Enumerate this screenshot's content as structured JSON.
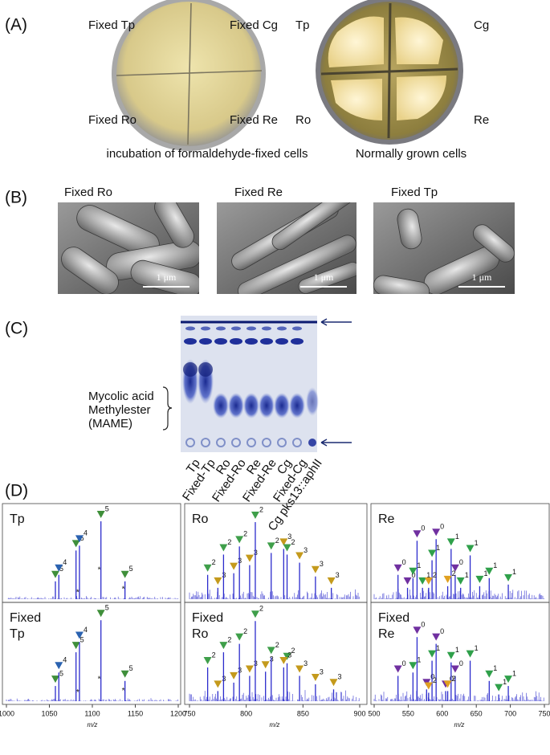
{
  "panel_a": {
    "label": "(A)",
    "fixed_plate": {
      "labels": [
        "Fixed Tp",
        "Fixed Cg",
        "Fixed Ro",
        "Fixed Re"
      ],
      "caption": "incubation of formaldehyde-fixed cells"
    },
    "normal_plate": {
      "labels": [
        "Tp",
        "Cg",
        "Ro",
        "Re"
      ],
      "caption": "Normally grown cells"
    }
  },
  "panel_b": {
    "label": "(B)",
    "images": [
      {
        "title": "Fixed Ro",
        "scale": "1 μm"
      },
      {
        "title": "Fixed Re",
        "scale": "1 μm"
      },
      {
        "title": "Fixed Tp",
        "scale": "1 μm"
      }
    ]
  },
  "panel_c": {
    "label": "(C)",
    "bracket_text": [
      "Mycolic acid",
      "Methylester",
      "(MAME)"
    ],
    "lanes": [
      "Tp",
      "Fixed-Tp",
      "Ro",
      "Fixed-Ro",
      "Re",
      "Fixed-Re",
      "Cg",
      "Fixed-Cg",
      "Cg pks13::aphII"
    ]
  },
  "panel_d": {
    "label": "(D)",
    "x_label": "m/z",
    "columns": [
      {
        "xlim": [
          1000,
          1200
        ],
        "xticks": [
          1000,
          1050,
          1100,
          1150,
          1200
        ],
        "rows": [
          {
            "title": [
              "Tp"
            ],
            "peaks": [
              {
                "mz": 1057,
                "intensity": 22,
                "label": "5",
                "color": "#3f8f3a"
              },
              {
                "mz": 1061,
                "intensity": 30,
                "label": "4",
                "color": "#2a62b0"
              },
              {
                "mz": 1081,
                "intensity": 60,
                "label": "5",
                "color": "#3f8f3a"
              },
              {
                "mz": 1085,
                "intensity": 66,
                "label": "4",
                "color": "#2a62b0"
              },
              {
                "mz": 1110,
                "intensity": 96,
                "label": "5",
                "color": "#3f8f3a"
              },
              {
                "mz": 1138,
                "intensity": 22,
                "label": "5",
                "color": "#3f8f3a"
              },
              {
                "mz": 1083,
                "intensity": 8,
                "label": "*"
              },
              {
                "mz": 1108,
                "intensity": 36,
                "label": "*"
              },
              {
                "mz": 1136,
                "intensity": 12,
                "label": "*"
              }
            ]
          },
          {
            "title": [
              "Fixed",
              "Tp"
            ],
            "peaks": [
              {
                "mz": 1057,
                "intensity": 18,
                "label": "5",
                "color": "#3f8f3a"
              },
              {
                "mz": 1061,
                "intensity": 34,
                "label": "4",
                "color": "#2a62b0"
              },
              {
                "mz": 1081,
                "intensity": 58,
                "label": "5",
                "color": "#3f8f3a"
              },
              {
                "mz": 1085,
                "intensity": 70,
                "label": "4",
                "color": "#2a62b0"
              },
              {
                "mz": 1110,
                "intensity": 96,
                "label": "5",
                "color": "#3f8f3a"
              },
              {
                "mz": 1138,
                "intensity": 24,
                "label": "5",
                "color": "#3f8f3a"
              },
              {
                "mz": 1083,
                "intensity": 10,
                "label": "*"
              },
              {
                "mz": 1108,
                "intensity": 26,
                "label": "*"
              },
              {
                "mz": 1136,
                "intensity": 12,
                "label": "*"
              }
            ]
          }
        ]
      },
      {
        "xlim": [
          750,
          900
        ],
        "xticks": [
          750,
          800,
          850,
          900
        ],
        "rows": [
          {
            "title": [
              "Ro"
            ],
            "peaks": [
              {
                "mz": 766,
                "intensity": 30,
                "label": "2",
                "color": "#3f9f4a"
              },
              {
                "mz": 775,
                "intensity": 14,
                "label": "3",
                "color": "#c49a1c"
              },
              {
                "mz": 780,
                "intensity": 55,
                "label": "2",
                "color": "#3f9f4a"
              },
              {
                "mz": 789,
                "intensity": 32,
                "label": "3",
                "color": "#c49a1c"
              },
              {
                "mz": 794,
                "intensity": 65,
                "label": "2",
                "color": "#3f9f4a"
              },
              {
                "mz": 803,
                "intensity": 42,
                "label": "3",
                "color": "#c49a1c"
              },
              {
                "mz": 808,
                "intensity": 95,
                "label": "2",
                "color": "#3f9f4a"
              },
              {
                "mz": 822,
                "intensity": 57,
                "label": "2",
                "color": "#3f9f4a"
              },
              {
                "mz": 833,
                "intensity": 62,
                "label": "3",
                "color": "#c49a1c"
              },
              {
                "mz": 836,
                "intensity": 55,
                "label": "2",
                "color": "#3f9f4a"
              },
              {
                "mz": 847,
                "intensity": 45,
                "label": "3",
                "color": "#c49a1c"
              },
              {
                "mz": 861,
                "intensity": 28,
                "label": "3",
                "color": "#c49a1c"
              },
              {
                "mz": 875,
                "intensity": 14,
                "label": "3",
                "color": "#c49a1c"
              }
            ]
          },
          {
            "title": [
              "Fixed",
              "Ro"
            ],
            "peaks": [
              {
                "mz": 766,
                "intensity": 40,
                "label": "2",
                "color": "#3f9f4a"
              },
              {
                "mz": 775,
                "intensity": 12,
                "label": "3",
                "color": "#c49a1c"
              },
              {
                "mz": 780,
                "intensity": 58,
                "label": "2",
                "color": "#3f9f4a"
              },
              {
                "mz": 789,
                "intensity": 22,
                "label": "3",
                "color": "#c49a1c"
              },
              {
                "mz": 794,
                "intensity": 68,
                "label": "2",
                "color": "#3f9f4a"
              },
              {
                "mz": 803,
                "intensity": 30,
                "label": "3",
                "color": "#c49a1c"
              },
              {
                "mz": 808,
                "intensity": 95,
                "label": "2",
                "color": "#3f9f4a"
              },
              {
                "mz": 817,
                "intensity": 35,
                "label": "3",
                "color": "#c49a1c"
              },
              {
                "mz": 822,
                "intensity": 52,
                "label": "2",
                "color": "#3f9f4a"
              },
              {
                "mz": 836,
                "intensity": 45,
                "label": "2",
                "color": "#3f9f4a"
              },
              {
                "mz": 833,
                "intensity": 40,
                "label": "3",
                "color": "#c49a1c"
              },
              {
                "mz": 847,
                "intensity": 30,
                "label": "3",
                "color": "#c49a1c"
              },
              {
                "mz": 861,
                "intensity": 20,
                "label": "3",
                "color": "#c49a1c"
              },
              {
                "mz": 877,
                "intensity": 14,
                "label": "3",
                "color": "#c49a1c"
              }
            ]
          }
        ]
      },
      {
        "xlim": [
          500,
          750
        ],
        "xticks": [
          500,
          550,
          600,
          650,
          700,
          750
        ],
        "rows": [
          {
            "title": [
              "Re"
            ],
            "peaks": [
              {
                "mz": 535,
                "intensity": 30,
                "label": "0",
                "color": "#7030a0"
              },
              {
                "mz": 549,
                "intensity": 14,
                "label": "0",
                "color": "#7030a0"
              },
              {
                "mz": 563,
                "intensity": 72,
                "label": "0",
                "color": "#7030a0"
              },
              {
                "mz": 591,
                "intensity": 74,
                "label": "0",
                "color": "#7030a0"
              },
              {
                "mz": 619,
                "intensity": 30,
                "label": "0",
                "color": "#7030a0"
              },
              {
                "mz": 557,
                "intensity": 26,
                "label": "1",
                "color": "#2fa04a"
              },
              {
                "mz": 571,
                "intensity": 14,
                "label": "1",
                "color": "#2fa04a"
              },
              {
                "mz": 585,
                "intensity": 48,
                "label": "1",
                "color": "#2fa04a"
              },
              {
                "mz": 613,
                "intensity": 62,
                "label": "1",
                "color": "#2fa04a"
              },
              {
                "mz": 627,
                "intensity": 14,
                "label": "1",
                "color": "#2fa04a"
              },
              {
                "mz": 641,
                "intensity": 54,
                "label": "1",
                "color": "#2fa04a"
              },
              {
                "mz": 655,
                "intensity": 16,
                "label": "1",
                "color": "#2fa04a"
              },
              {
                "mz": 669,
                "intensity": 26,
                "label": "1",
                "color": "#2fa04a"
              },
              {
                "mz": 697,
                "intensity": 18,
                "label": "1",
                "color": "#2fa04a"
              },
              {
                "mz": 580,
                "intensity": 14,
                "label": "2",
                "color": "#e0a020"
              },
              {
                "mz": 608,
                "intensity": 16,
                "label": "2",
                "color": "#e0a020"
              }
            ]
          },
          {
            "title": [
              "Fixed",
              "Re"
            ],
            "peaks": [
              {
                "mz": 535,
                "intensity": 30,
                "label": "0",
                "color": "#7030a0"
              },
              {
                "mz": 563,
                "intensity": 76,
                "label": "0",
                "color": "#7030a0"
              },
              {
                "mz": 577,
                "intensity": 14,
                "label": "0",
                "color": "#7030a0"
              },
              {
                "mz": 591,
                "intensity": 68,
                "label": "0",
                "color": "#7030a0"
              },
              {
                "mz": 605,
                "intensity": 12,
                "label": "0",
                "color": "#7030a0"
              },
              {
                "mz": 619,
                "intensity": 30,
                "label": "0",
                "color": "#7030a0"
              },
              {
                "mz": 557,
                "intensity": 34,
                "label": "1",
                "color": "#2fa04a"
              },
              {
                "mz": 585,
                "intensity": 48,
                "label": "1",
                "color": "#2fa04a"
              },
              {
                "mz": 613,
                "intensity": 46,
                "label": "1",
                "color": "#2fa04a"
              },
              {
                "mz": 641,
                "intensity": 48,
                "label": "1",
                "color": "#2fa04a"
              },
              {
                "mz": 669,
                "intensity": 24,
                "label": "1",
                "color": "#2fa04a"
              },
              {
                "mz": 697,
                "intensity": 18,
                "label": "1",
                "color": "#2fa04a"
              },
              {
                "mz": 683,
                "intensity": 8,
                "label": "1",
                "color": "#2fa04a"
              },
              {
                "mz": 580,
                "intensity": 10,
                "label": "2",
                "color": "#e0a020"
              },
              {
                "mz": 608,
                "intensity": 12,
                "label": "2",
                "color": "#e0a020"
              }
            ]
          }
        ]
      }
    ]
  }
}
